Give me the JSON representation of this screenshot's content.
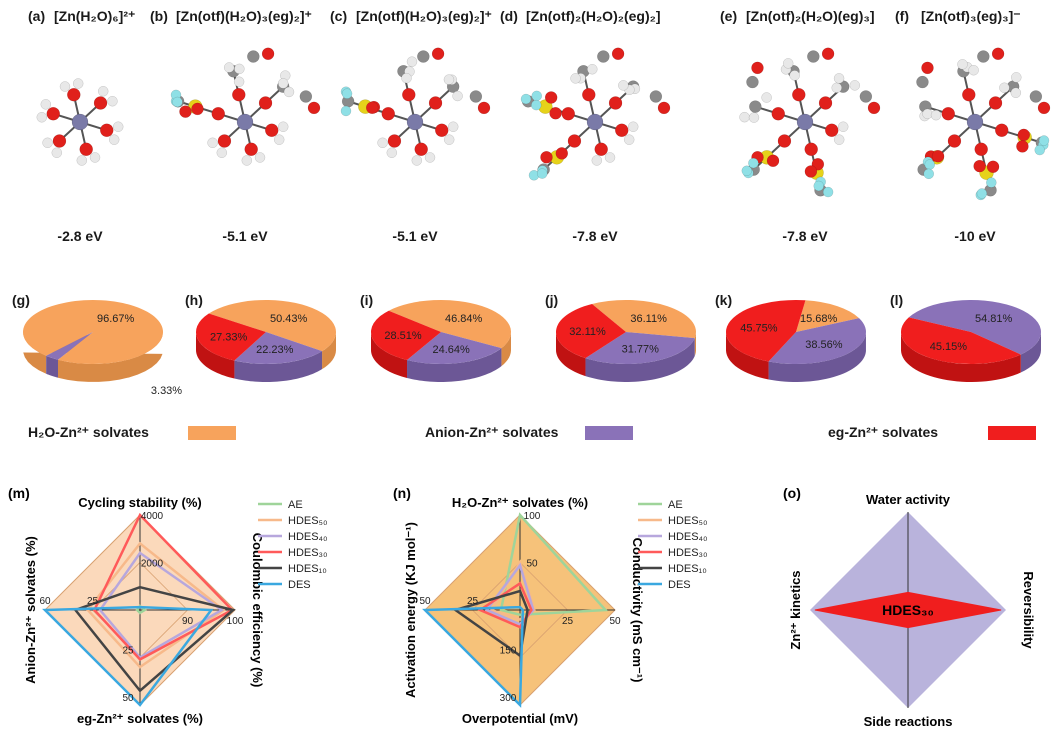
{
  "structures": [
    {
      "tag": "(a)",
      "formula": "[Zn(H₂O)₆]²⁺",
      "energy": "-2.8 eV",
      "otf": 0,
      "eg": 0,
      "water": 6
    },
    {
      "tag": "(b)",
      "formula": "[Zn(otf)(H₂O)₃(eg)₂]⁺",
      "energy": "-5.1 eV",
      "otf": 1,
      "eg": 2,
      "water": 3
    },
    {
      "tag": "(c)",
      "formula": "[Zn(otf)(H₂O)₃(eg)₂]⁺",
      "energy": "-5.1 eV",
      "otf": 1,
      "eg": 2,
      "water": 3
    },
    {
      "tag": "(d)",
      "formula": "[Zn(otf)₂(H₂O)₂(eg)₂]",
      "energy": "-7.8 eV",
      "otf": 2,
      "eg": 2,
      "water": 2
    },
    {
      "tag": "(e)",
      "formula": "[Zn(otf)₂(H₂O)(eg)₃]",
      "energy": "-7.8 eV",
      "otf": 2,
      "eg": 3,
      "water": 1
    },
    {
      "tag": "(f)",
      "formula": "[Zn(otf)₃(eg)₃]⁻",
      "energy": "-10 eV",
      "otf": 3,
      "eg": 3,
      "water": 0
    }
  ],
  "atom_colors": {
    "zn": "#7a7aa8",
    "o": "#e0201b",
    "h": "#e8e8e8",
    "c": "#8a8a8a",
    "s": "#e6d21a",
    "f": "#8fe0e6"
  },
  "legend": [
    {
      "label": "H₂O-Zn²⁺ solvates",
      "color": "#f7a35c"
    },
    {
      "label": "Anion-Zn²⁺ solvates",
      "color": "#8a72b8"
    },
    {
      "label": "eg-Zn²⁺ solvates",
      "color": "#f01e1e"
    }
  ],
  "chart_data": [
    {
      "type": "pie",
      "panel": "(g)",
      "labels": [
        "H₂O-Zn²⁺ solvates",
        "Anion-Zn²⁺ solvates"
      ],
      "values": [
        96.67,
        3.33
      ],
      "value_labels": [
        "96.67%",
        "3.33%"
      ]
    },
    {
      "type": "pie",
      "panel": "(h)",
      "labels": [
        "H₂O-Zn²⁺ solvates",
        "Anion-Zn²⁺ solvates",
        "eg-Zn²⁺ solvates"
      ],
      "values": [
        50.43,
        22.23,
        27.33
      ],
      "value_labels": [
        "50.43%",
        "22.23%",
        "27.33%"
      ]
    },
    {
      "type": "pie",
      "panel": "(i)",
      "labels": [
        "H₂O-Zn²⁺ solvates",
        "Anion-Zn²⁺ solvates",
        "eg-Zn²⁺ solvates"
      ],
      "values": [
        46.84,
        24.64,
        28.51
      ],
      "value_labels": [
        "46.84%",
        "24.64%",
        "28.51%"
      ]
    },
    {
      "type": "pie",
      "panel": "(j)",
      "labels": [
        "H₂O-Zn²⁺ solvates",
        "Anion-Zn²⁺ solvates",
        "eg-Zn²⁺ solvates"
      ],
      "values": [
        36.11,
        31.77,
        32.11
      ],
      "value_labels": [
        "36.11%",
        "31.77%",
        "32.11%"
      ]
    },
    {
      "type": "pie",
      "panel": "(k)",
      "labels": [
        "H₂O-Zn²⁺ solvates",
        "Anion-Zn²⁺ solvates",
        "eg-Zn²⁺ solvates"
      ],
      "values": [
        15.68,
        38.56,
        45.75
      ],
      "value_labels": [
        "15.68%",
        "38.56%",
        "45.75%"
      ]
    },
    {
      "type": "pie",
      "panel": "(l)",
      "labels": [
        "Anion-Zn²⁺ solvates",
        "eg-Zn²⁺ solvates"
      ],
      "values": [
        54.81,
        45.15
      ],
      "value_labels": [
        "54.81%",
        "45.15%"
      ]
    },
    {
      "type": "radar",
      "panel": "(m)",
      "axes": [
        "Cycling stability (%)",
        "Coulombic efficiency (%)",
        "eg-Zn²⁺ solvates (%)",
        "Anion-Zn²⁺ solvates (%)"
      ],
      "ticks": [
        [
          "2000",
          "4000"
        ],
        [
          "90",
          "100"
        ],
        [
          "25",
          "50"
        ],
        [
          "25",
          "60"
        ]
      ],
      "series": [
        {
          "name": "AE",
          "color": "#9fd49a",
          "values": [
            0.04,
            0.05,
            0.0,
            0.02
          ]
        },
        {
          "name": "HDES₅₀",
          "color": "#f7b98a",
          "values": [
            0.7,
            0.88,
            0.6,
            0.55
          ]
        },
        {
          "name": "HDES₄₀",
          "color": "#b7a7dd",
          "values": [
            0.6,
            0.86,
            0.5,
            0.42
          ]
        },
        {
          "name": "HDES₃₀",
          "color": "#ff5a5a",
          "values": [
            1.0,
            0.97,
            0.52,
            0.48
          ]
        },
        {
          "name": "HDES₁₀",
          "color": "#444444",
          "values": [
            0.24,
            0.98,
            0.85,
            0.68
          ]
        },
        {
          "name": "DES",
          "color": "#3aa8e0",
          "values": [
            0.0,
            0.75,
            1.0,
            1.0
          ]
        }
      ]
    },
    {
      "type": "radar",
      "panel": "(n)",
      "axes": [
        "H₂O-Zn²⁺ solvates (%)",
        "Conductivity (mS cm⁻¹)",
        "Overpotential (mV)",
        "Activation energy (KJ mol⁻¹)"
      ],
      "ticks": [
        [
          "50",
          "100"
        ],
        [
          "25",
          "50"
        ],
        [
          "150",
          "300"
        ],
        [
          "25",
          "50"
        ]
      ],
      "series": [
        {
          "name": "AE",
          "color": "#9fd49a",
          "values": [
            1.0,
            0.9,
            0.05,
            0.2
          ]
        },
        {
          "name": "HDES₅₀",
          "color": "#f7b98a",
          "values": [
            0.5,
            0.15,
            0.1,
            0.3
          ]
        },
        {
          "name": "HDES₄₀",
          "color": "#b7a7dd",
          "values": [
            0.47,
            0.14,
            0.15,
            0.35
          ]
        },
        {
          "name": "HDES₃₀",
          "color": "#ff5a5a",
          "values": [
            0.28,
            0.12,
            0.18,
            0.42
          ]
        },
        {
          "name": "HDES₁₀",
          "color": "#444444",
          "values": [
            0.2,
            0.08,
            0.48,
            0.68
          ]
        },
        {
          "name": "DES",
          "color": "#3aa8e0",
          "values": [
            0.0,
            0.02,
            1.0,
            1.0
          ]
        }
      ]
    },
    {
      "type": "radar",
      "panel": "(o)",
      "axes": [
        "Water activity",
        "Reversibility",
        "Side reactions",
        "Zn²⁺ kinetics"
      ],
      "annotation": "HDES₃₀",
      "series": [
        {
          "name": "HDES₃₀",
          "color": "#f01e1e",
          "values": [
            0.18,
            0.95,
            0.18,
            0.95
          ]
        }
      ]
    }
  ]
}
